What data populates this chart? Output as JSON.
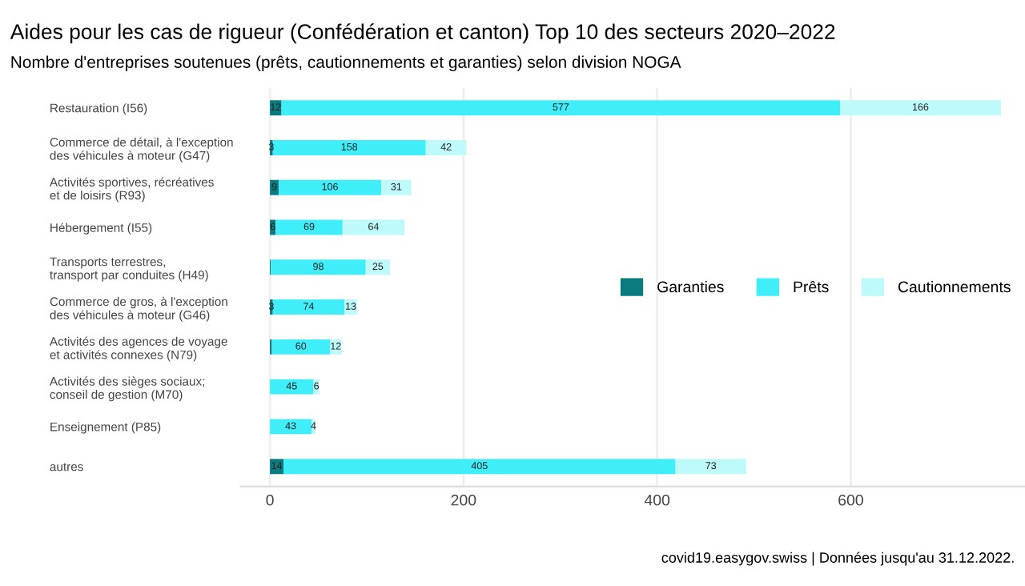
{
  "chart_data": {
    "type": "bar",
    "orientation": "horizontal",
    "stacked": true,
    "title": "Aides pour les cas de rigueur (Confédération et canton) Top 10 des secteurs 2020–2022",
    "subtitle": "Nombre d'entreprises soutenues (prêts, cautionnements et garanties) selon division NOGA",
    "categories": [
      "Restauration (I56)",
      "Commerce de détail, à l'exception\ndes véhicules à moteur (G47)",
      "Activités sportives, récréatives\net de loisirs (R93)",
      "Hébergement (I55)",
      "Transports terrestres,\ntransport par conduites (H49)",
      "Commerce de gros, à l'exception\ndes véhicules à moteur (G46)",
      "Activités des agences de voyage\net activités connexes (N79)",
      "Activités des sièges sociaux;\nconseil de gestion (M70)",
      "Enseignement (P85)",
      "autres"
    ],
    "series": [
      {
        "name": "Garanties",
        "color": "#0a7c80",
        "values": [
          12,
          3,
          9,
          6,
          1,
          3,
          2,
          0,
          0,
          14
        ],
        "value_labels": [
          "12",
          "3",
          "9",
          "6",
          null,
          "3",
          null,
          null,
          null,
          "14"
        ]
      },
      {
        "name": "Prêts",
        "color": "#40eefa",
        "values": [
          577,
          158,
          106,
          69,
          98,
          74,
          60,
          45,
          43,
          405
        ],
        "value_labels": [
          "577",
          "158",
          "106",
          "69",
          "98",
          "74",
          "60",
          "45",
          "43",
          "405"
        ]
      },
      {
        "name": "Cautionnements",
        "color": "#bef9fb",
        "values": [
          166,
          42,
          31,
          64,
          25,
          13,
          12,
          6,
          4,
          73
        ],
        "value_labels": [
          "166",
          "42",
          "31",
          "64",
          "25",
          "13",
          "12",
          "6",
          "4",
          "73"
        ]
      }
    ],
    "xlim": [
      -30,
      780
    ],
    "xticks": [
      0,
      200,
      400,
      600
    ],
    "grid": "x",
    "legend": "right",
    "annotations": [
      "covid19.easygov.swiss | Données jusqu'au 31.12.2022."
    ]
  }
}
